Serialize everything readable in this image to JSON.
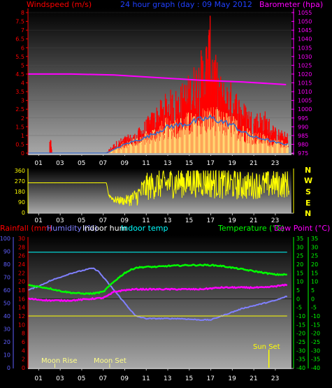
{
  "header": {
    "left_label": "Windspeed (m/s)",
    "title": "24 hour graph (day : 09 May 2012",
    "right_label": "Barometer (hpa)"
  },
  "colors": {
    "wind": "#ff0000",
    "gust": "#ffff88",
    "wind_avg": "#3a6cc8",
    "baro": "#ff00ff",
    "direction": "#ffff00",
    "humidity": "#8080ff",
    "temperature": "#00ff00",
    "dewpoint": "#ff00ff",
    "indoor_temp": "#00ffff",
    "rain": "#ffff00",
    "left_axis": "#ff0000",
    "humidity_axis": "#6060ff",
    "right_axis": "#00ff00"
  },
  "compass": [
    "N",
    "W",
    "S",
    "E",
    "N"
  ],
  "legend": {
    "rainfall": "Rainfall (mm)",
    "humidity": "Humidity (%)",
    "indoor_hum": "Indoor hum",
    "indoor_temp": "Indoor temp",
    "temperature": "Temperature (°C)",
    "dew_point": "Dew Point (°C)"
  },
  "events": {
    "moon_rise": {
      "label": "Moon Rise",
      "hour": 2.5
    },
    "moon_set": {
      "label": "Moon Set",
      "hour": 7.6
    },
    "sun_set": {
      "label": "Sun Set",
      "hour": 22.4
    }
  },
  "chart_data": [
    {
      "type": "bar",
      "name": "wind",
      "x_ticks": [
        "01",
        "03",
        "05",
        "07",
        "09",
        "11",
        "13",
        "15",
        "17",
        "19",
        "21",
        "23"
      ],
      "xlim": [
        0,
        24.5
      ],
      "y_ticks": [
        "0",
        "0.5",
        "1",
        "1.5",
        "2",
        "2.5",
        "3",
        "3.5",
        "4",
        "4.5",
        "5",
        "5.5",
        "6",
        "6.5",
        "7",
        "7.5",
        "8"
      ],
      "ylim": [
        0,
        8
      ],
      "y2_ticks": [
        "975",
        "980",
        "985",
        "990",
        "995",
        "1000",
        "1005",
        "1010",
        "1015",
        "1020",
        "1025",
        "1030",
        "1035",
        "1040",
        "1045",
        "1050",
        "1055"
      ],
      "y2lim": [
        975,
        1055
      ],
      "gust_envelope": [
        [
          0,
          0
        ],
        [
          2,
          0
        ],
        [
          2.05,
          1.4
        ],
        [
          2.15,
          0.6
        ],
        [
          2.25,
          0
        ],
        [
          7.3,
          0
        ],
        [
          7.6,
          0.3
        ],
        [
          8.2,
          0.7
        ],
        [
          9,
          1.0
        ],
        [
          10,
          1.2
        ],
        [
          11,
          2.0
        ],
        [
          12,
          2.8
        ],
        [
          13,
          3.6
        ],
        [
          14,
          3.8
        ],
        [
          15,
          4.6
        ],
        [
          15.8,
          5.6
        ],
        [
          16.4,
          6.3
        ],
        [
          17,
          8.0
        ],
        [
          17.4,
          5.8
        ],
        [
          18,
          4.3
        ],
        [
          19,
          4.1
        ],
        [
          20,
          3.0
        ],
        [
          21,
          2.4
        ],
        [
          22,
          2.5
        ],
        [
          23,
          1.5
        ],
        [
          24,
          1.2
        ]
      ],
      "avg_envelope": [
        [
          0,
          0
        ],
        [
          7.3,
          0
        ],
        [
          8,
          0.2
        ],
        [
          9,
          0.5
        ],
        [
          10,
          0.7
        ],
        [
          11,
          0.9
        ],
        [
          12,
          1.2
        ],
        [
          13,
          1.5
        ],
        [
          14,
          1.6
        ],
        [
          15,
          1.7
        ],
        [
          16,
          1.9
        ],
        [
          17,
          2.0
        ],
        [
          18,
          1.8
        ],
        [
          19,
          1.6
        ],
        [
          20,
          1.2
        ],
        [
          21,
          0.9
        ],
        [
          22,
          0.8
        ],
        [
          23,
          0.6
        ],
        [
          24,
          0.5
        ]
      ],
      "barometer": [
        [
          0,
          1020
        ],
        [
          4,
          1020
        ],
        [
          8,
          1019.5
        ],
        [
          12,
          1018
        ],
        [
          16,
          1016.5
        ],
        [
          20,
          1015.5
        ],
        [
          24,
          1014
        ]
      ]
    },
    {
      "type": "line",
      "name": "wind_direction",
      "x_ticks": [
        "01",
        "03",
        "05",
        "07",
        "09",
        "11",
        "13",
        "15",
        "17",
        "19",
        "21",
        "23"
      ],
      "y_ticks": [
        "0",
        "90",
        "180",
        "270",
        "360"
      ],
      "ylim": [
        0,
        360
      ],
      "points": [
        [
          0,
          255
        ],
        [
          7.3,
          255
        ],
        [
          7.5,
          150
        ],
        [
          8,
          110
        ],
        [
          9,
          100
        ],
        [
          10,
          130
        ],
        [
          11,
          220
        ],
        [
          12,
          240
        ],
        [
          14,
          260
        ],
        [
          16,
          270
        ],
        [
          18,
          250
        ],
        [
          20,
          230
        ],
        [
          22,
          240
        ],
        [
          24,
          245
        ]
      ],
      "spread": [
        [
          0,
          0
        ],
        [
          7.3,
          0
        ],
        [
          8,
          30
        ],
        [
          9,
          40
        ],
        [
          10,
          80
        ],
        [
          11,
          120
        ],
        [
          13,
          130
        ],
        [
          15,
          140
        ],
        [
          17,
          140
        ],
        [
          19,
          130
        ],
        [
          21,
          120
        ],
        [
          23,
          120
        ],
        [
          24,
          120
        ]
      ]
    },
    {
      "type": "line",
      "name": "climate",
      "x_ticks": [
        "01",
        "03",
        "05",
        "07",
        "09",
        "11",
        "13",
        "15",
        "17",
        "19",
        "21",
        "23"
      ],
      "left_rain_ticks": [
        "0",
        "2",
        "4",
        "6",
        "8",
        "10",
        "12",
        "14",
        "16",
        "18",
        "20",
        "22",
        "24",
        "26",
        "28",
        "30"
      ],
      "rain_lim": [
        0,
        30
      ],
      "left_hum_ticks": [
        "0",
        "10",
        "20",
        "30",
        "40",
        "50",
        "60",
        "70",
        "80",
        "90",
        "100"
      ],
      "hum_lim": [
        0,
        100
      ],
      "right_temp_ticks": [
        "35",
        "30",
        "25",
        "20",
        "15",
        "10",
        "5",
        "0",
        "-5",
        "-10",
        "-15",
        "-20",
        "-25",
        "-30",
        "-35",
        "-40"
      ],
      "temp_lim": [
        -40,
        35
      ],
      "series": [
        {
          "key": "humidity",
          "points": [
            [
              0,
              60
            ],
            [
              1,
              63
            ],
            [
              2,
              67
            ],
            [
              3,
              70
            ],
            [
              4,
              73
            ],
            [
              5,
              75
            ],
            [
              6,
              77
            ],
            [
              6.5,
              75
            ],
            [
              7,
              70
            ],
            [
              8,
              60
            ],
            [
              9,
              50
            ],
            [
              10,
              40
            ],
            [
              11,
              38
            ],
            [
              12,
              38
            ],
            [
              14,
              38
            ],
            [
              16,
              37
            ],
            [
              17,
              37
            ],
            [
              18,
              40
            ],
            [
              20,
              46
            ],
            [
              22,
              50
            ],
            [
              23,
              52
            ],
            [
              24,
              55
            ]
          ]
        },
        {
          "key": "temperature",
          "points": [
            [
              0,
              8
            ],
            [
              1,
              7
            ],
            [
              2,
              6
            ],
            [
              3,
              4.5
            ],
            [
              4,
              3.5
            ],
            [
              5,
              3
            ],
            [
              6,
              3
            ],
            [
              7,
              4
            ],
            [
              8,
              10
            ],
            [
              9,
              15
            ],
            [
              10,
              18
            ],
            [
              11,
              18.5
            ],
            [
              12,
              18.5
            ],
            [
              13,
              19
            ],
            [
              15,
              19.5
            ],
            [
              17,
              19.5
            ],
            [
              18,
              19
            ],
            [
              19,
              18
            ],
            [
              20,
              17
            ],
            [
              22,
              15
            ],
            [
              23,
              14
            ],
            [
              24,
              14
            ]
          ]
        },
        {
          "key": "dewpoint",
          "points": [
            [
              0,
              0
            ],
            [
              2,
              -1
            ],
            [
              4,
              -1
            ],
            [
              5,
              -0.5
            ],
            [
              6,
              0
            ],
            [
              7,
              0.5
            ],
            [
              7.5,
              2
            ],
            [
              8,
              4
            ],
            [
              9,
              5
            ],
            [
              10,
              5.5
            ],
            [
              12,
              5.5
            ],
            [
              14,
              5.5
            ],
            [
              16,
              5.5
            ],
            [
              17,
              6
            ],
            [
              18,
              6.5
            ],
            [
              20,
              6.5
            ],
            [
              22,
              6.5
            ],
            [
              24,
              8
            ]
          ]
        },
        {
          "key": "indoor_temp",
          "points": [
            [
              0,
              27
            ],
            [
              24,
              27
            ]
          ]
        },
        {
          "key": "rain",
          "points": [
            [
              0,
              -10
            ],
            [
              24,
              -10
            ]
          ]
        }
      ]
    }
  ]
}
